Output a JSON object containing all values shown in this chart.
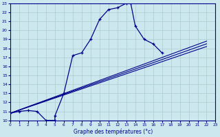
{
  "xlabel": "Graphe des températures (°c)",
  "bg_color": "#cce8ee",
  "grid_color": "#aacccc",
  "line_color": "#00008b",
  "xmin": 0,
  "xmax": 23,
  "ymin": 10,
  "ymax": 23,
  "main_series": [
    [
      0,
      10.8
    ],
    [
      1,
      11.0
    ],
    [
      2,
      11.1
    ],
    [
      3,
      11.0
    ],
    [
      4,
      10.0
    ],
    [
      5,
      10.0
    ],
    [
      5,
      10.5
    ],
    [
      6,
      13.0
    ],
    [
      7,
      17.2
    ],
    [
      8,
      17.5
    ],
    [
      9,
      19.0
    ],
    [
      10,
      21.2
    ],
    [
      11,
      22.3
    ],
    [
      12,
      22.5
    ],
    [
      13,
      23.0
    ],
    [
      13.5,
      23.0
    ],
    [
      14,
      20.5
    ],
    [
      15,
      19.0
    ],
    [
      16,
      18.5
    ],
    [
      17,
      17.5
    ]
  ],
  "line2_series": [
    [
      0,
      10.8
    ],
    [
      22,
      18.2
    ]
  ],
  "line3_series": [
    [
      0,
      10.8
    ],
    [
      22,
      18.5
    ]
  ],
  "line4_series": [
    [
      0,
      10.8
    ],
    [
      22,
      18.8
    ]
  ]
}
